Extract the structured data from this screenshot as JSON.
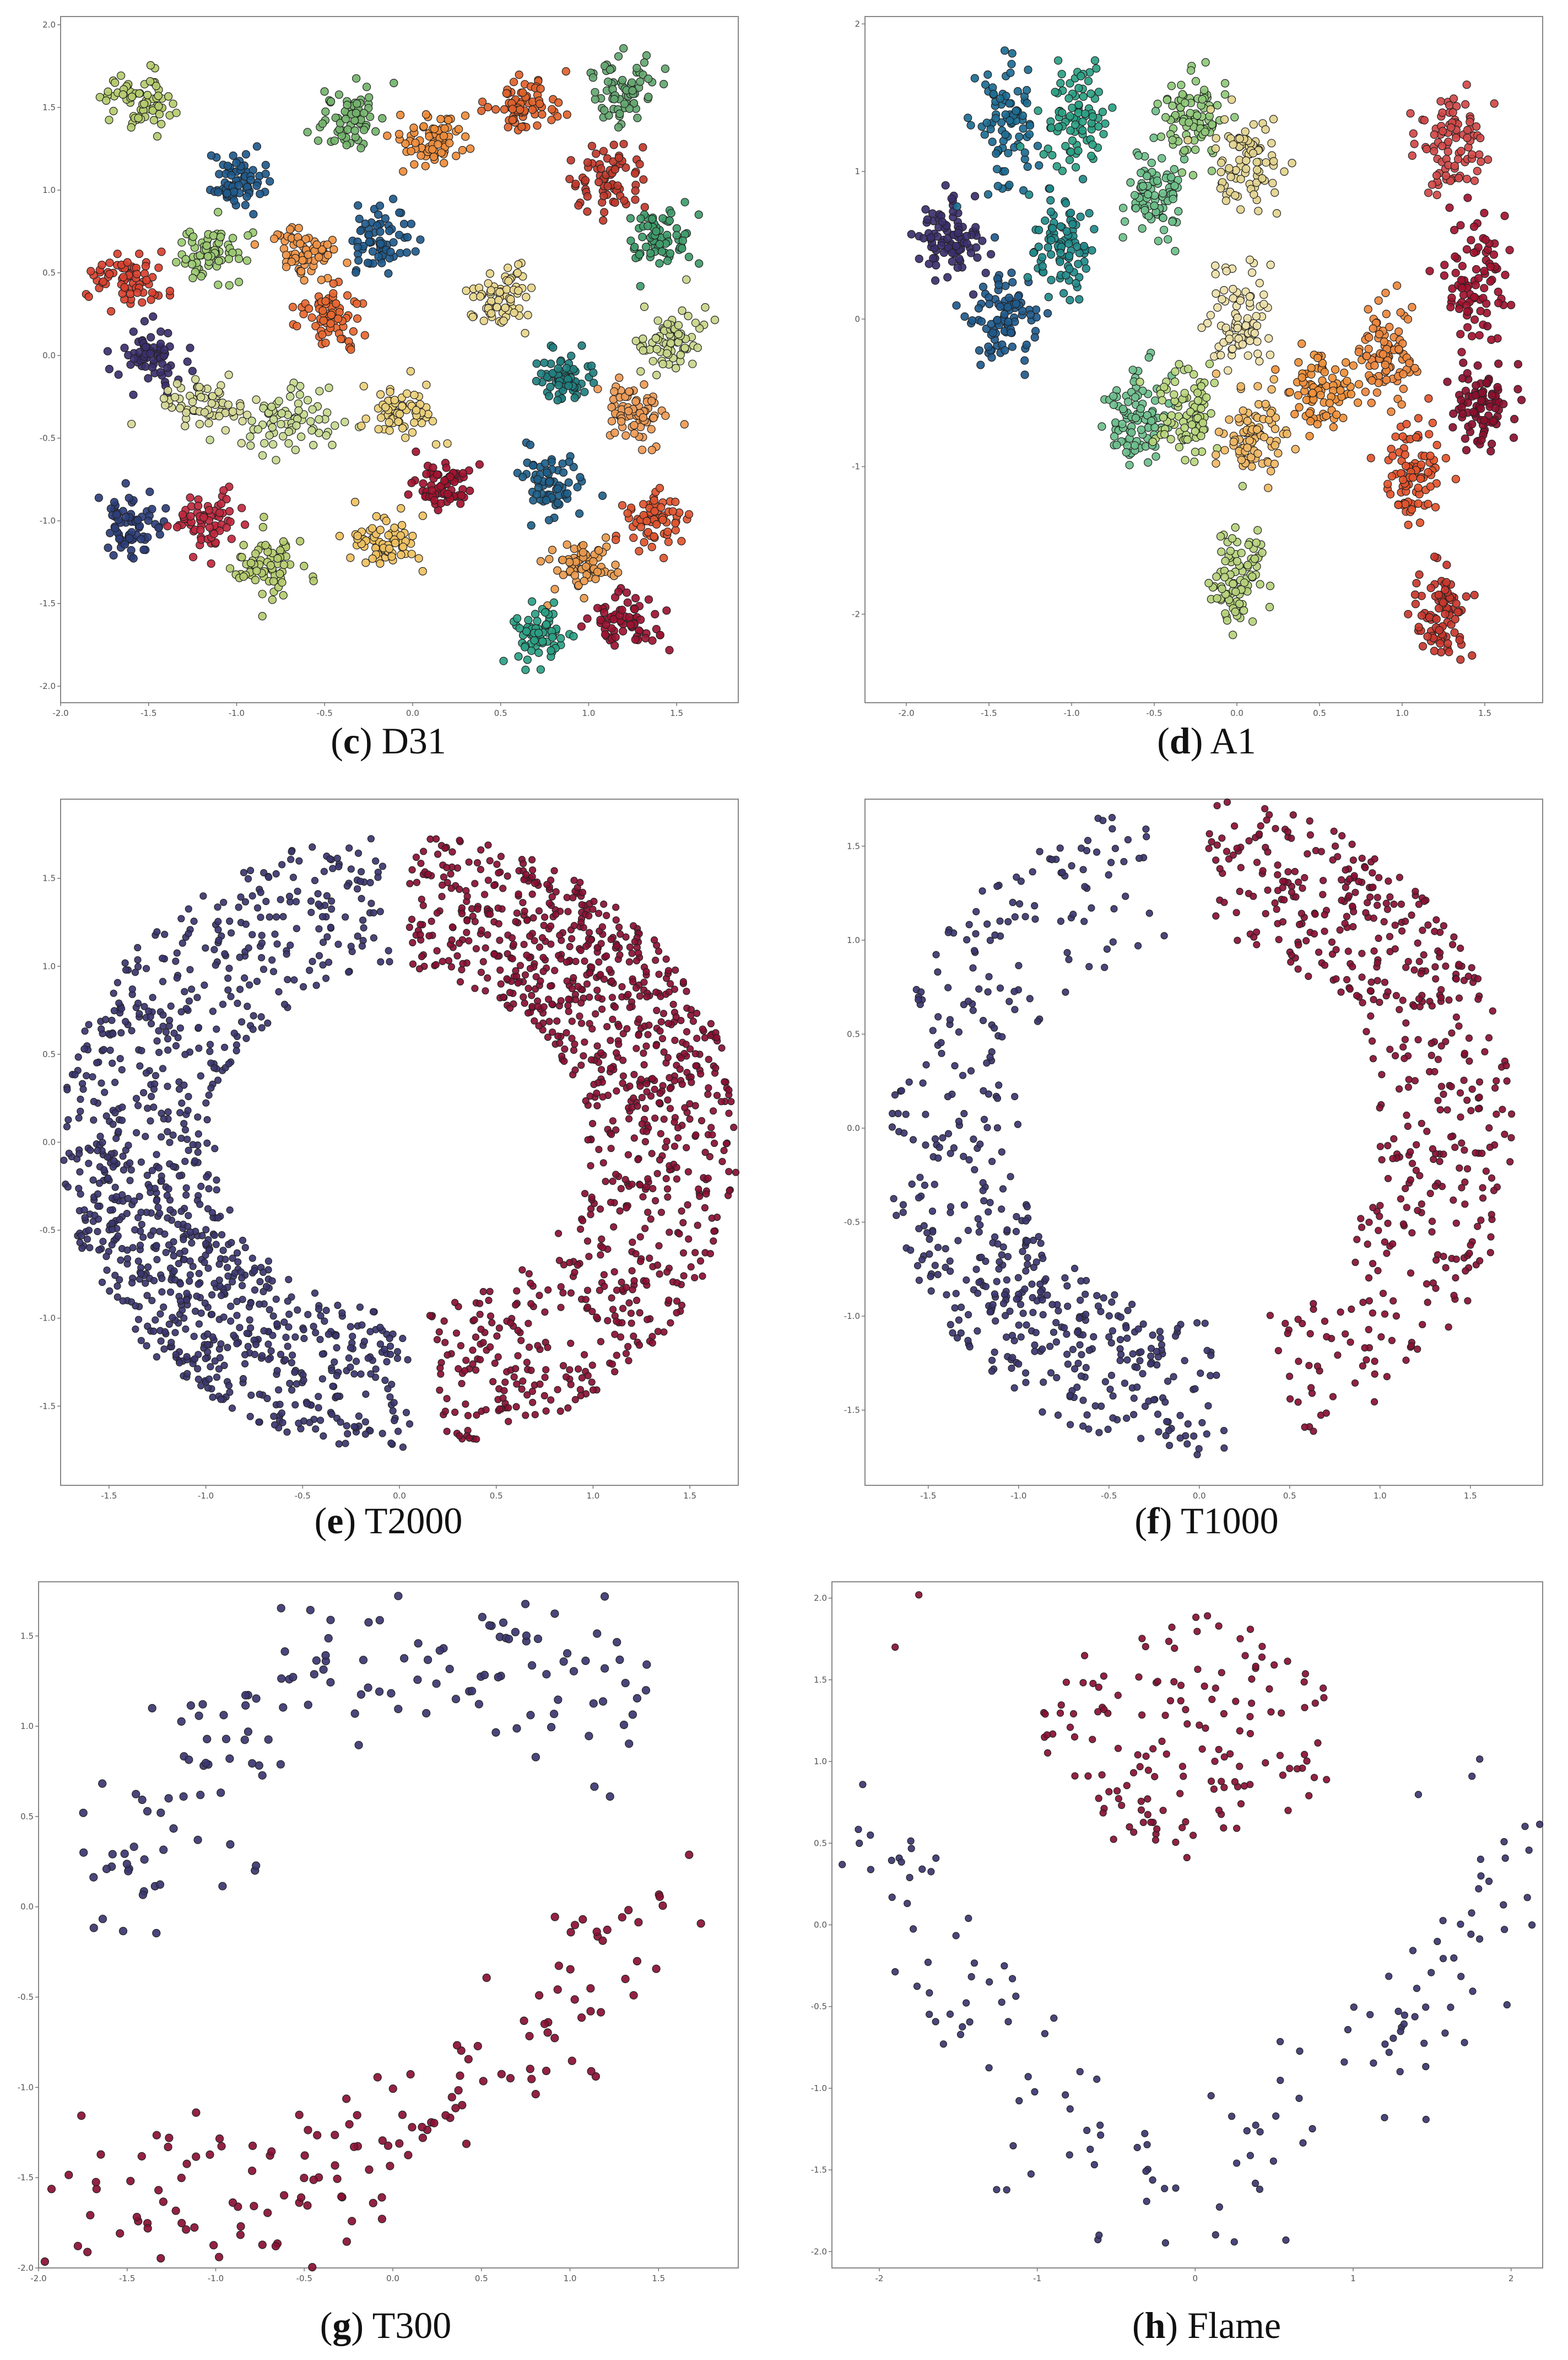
{
  "chart_data": [
    {
      "type": "scatter",
      "id": "c",
      "title": "D31",
      "caption_letter": "c",
      "xlim": [
        -2.0,
        1.85
      ],
      "ylim": [
        -2.1,
        2.05
      ],
      "xticks": [
        "-2.0",
        "-1.5",
        "-1.0",
        "-0.5",
        "0.0",
        "0.5",
        "1.0",
        "1.5"
      ],
      "yticks": [
        "2.0",
        "1.5",
        "1.0",
        "0.5",
        "0.0",
        "-0.5",
        "-1.0",
        "-1.5",
        "-2.0"
      ],
      "xtick_values": [
        -2.0,
        -1.5,
        -1.0,
        -0.5,
        0.0,
        0.5,
        1.0,
        1.5
      ],
      "ytick_values": [
        2.0,
        1.5,
        1.0,
        0.5,
        0.0,
        -0.5,
        -1.0,
        -1.5,
        -2.0
      ],
      "marker_radius": 7,
      "clusters": [
        {
          "cx": -1.55,
          "cy": 1.55,
          "sx": 0.1,
          "sy": 0.09,
          "n": 70,
          "color": "#b5cc6e"
        },
        {
          "cx": -1.02,
          "cy": 1.05,
          "sx": 0.08,
          "sy": 0.08,
          "n": 70,
          "color": "#1f5a8c"
        },
        {
          "cx": -0.35,
          "cy": 1.43,
          "sx": 0.09,
          "sy": 0.09,
          "n": 70,
          "color": "#74b46d"
        },
        {
          "cx": 0.12,
          "cy": 1.3,
          "sx": 0.1,
          "sy": 0.08,
          "n": 70,
          "color": "#ef8c3a"
        },
        {
          "cx": 0.65,
          "cy": 1.53,
          "sx": 0.11,
          "sy": 0.08,
          "n": 70,
          "color": "#e0622b"
        },
        {
          "cx": 1.18,
          "cy": 1.6,
          "sx": 0.1,
          "sy": 0.1,
          "n": 70,
          "color": "#64a770"
        },
        {
          "cx": 1.1,
          "cy": 1.08,
          "sx": 0.1,
          "sy": 0.1,
          "n": 70,
          "color": "#c0392b"
        },
        {
          "cx": 1.4,
          "cy": 0.72,
          "sx": 0.09,
          "sy": 0.1,
          "n": 70,
          "color": "#3f9c6a"
        },
        {
          "cx": -1.15,
          "cy": 0.62,
          "sx": 0.1,
          "sy": 0.09,
          "n": 70,
          "color": "#9ccb72"
        },
        {
          "cx": -0.62,
          "cy": 0.62,
          "sx": 0.1,
          "sy": 0.07,
          "n": 70,
          "color": "#f09447"
        },
        {
          "cx": -0.2,
          "cy": 0.7,
          "sx": 0.09,
          "sy": 0.1,
          "n": 70,
          "color": "#1f5a8c"
        },
        {
          "cx": -1.62,
          "cy": 0.45,
          "sx": 0.1,
          "sy": 0.09,
          "n": 70,
          "color": "#d9412f"
        },
        {
          "cx": -0.45,
          "cy": 0.22,
          "sx": 0.1,
          "sy": 0.09,
          "n": 70,
          "color": "#e8672f"
        },
        {
          "cx": 0.5,
          "cy": 0.35,
          "sx": 0.09,
          "sy": 0.09,
          "n": 70,
          "color": "#e8d68a"
        },
        {
          "cx": -1.5,
          "cy": 0.0,
          "sx": 0.09,
          "sy": 0.1,
          "n": 70,
          "color": "#3c2f6e"
        },
        {
          "cx": 1.45,
          "cy": 0.08,
          "sx": 0.11,
          "sy": 0.11,
          "n": 70,
          "color": "#c8d68a"
        },
        {
          "cx": -1.13,
          "cy": -0.3,
          "sx": 0.14,
          "sy": 0.07,
          "n": 70,
          "color": "#d6d996"
        },
        {
          "cx": -0.7,
          "cy": -0.4,
          "sx": 0.12,
          "sy": 0.09,
          "n": 70,
          "color": "#c5d98f"
        },
        {
          "cx": -0.05,
          "cy": -0.35,
          "sx": 0.09,
          "sy": 0.09,
          "n": 70,
          "color": "#ebd07a"
        },
        {
          "cx": 0.85,
          "cy": -0.15,
          "sx": 0.08,
          "sy": 0.08,
          "n": 70,
          "color": "#1f7f7f"
        },
        {
          "cx": 1.25,
          "cy": -0.35,
          "sx": 0.1,
          "sy": 0.1,
          "n": 70,
          "color": "#ee9a55"
        },
        {
          "cx": -1.6,
          "cy": -1.02,
          "sx": 0.09,
          "sy": 0.09,
          "n": 70,
          "color": "#2c3e7a"
        },
        {
          "cx": -1.17,
          "cy": -1.0,
          "sx": 0.09,
          "sy": 0.09,
          "n": 70,
          "color": "#c0283e"
        },
        {
          "cx": 0.15,
          "cy": -0.8,
          "sx": 0.09,
          "sy": 0.08,
          "n": 70,
          "color": "#a3122f"
        },
        {
          "cx": 0.8,
          "cy": -0.8,
          "sx": 0.08,
          "sy": 0.09,
          "n": 70,
          "color": "#1e5f8a"
        },
        {
          "cx": 1.38,
          "cy": -1.0,
          "sx": 0.09,
          "sy": 0.1,
          "n": 70,
          "color": "#e0552f"
        },
        {
          "cx": -0.82,
          "cy": -1.28,
          "sx": 0.1,
          "sy": 0.09,
          "n": 70,
          "color": "#b5cc6e"
        },
        {
          "cx": -0.18,
          "cy": -1.15,
          "sx": 0.1,
          "sy": 0.08,
          "n": 70,
          "color": "#f0c160"
        },
        {
          "cx": 0.95,
          "cy": -1.28,
          "sx": 0.1,
          "sy": 0.08,
          "n": 70,
          "color": "#ea9a4c"
        },
        {
          "cx": 0.72,
          "cy": -1.68,
          "sx": 0.09,
          "sy": 0.09,
          "n": 70,
          "color": "#2aa184"
        },
        {
          "cx": 1.22,
          "cy": -1.62,
          "sx": 0.1,
          "sy": 0.08,
          "n": 70,
          "color": "#9d1432"
        }
      ]
    },
    {
      "type": "scatter",
      "id": "d",
      "title": "A1",
      "caption_letter": "d",
      "xlim": [
        -2.25,
        1.85
      ],
      "ylim": [
        -2.6,
        2.05
      ],
      "xticks": [
        "-2.0",
        "-1.5",
        "-1.0",
        "-0.5",
        "0.0",
        "0.5",
        "1.0",
        "1.5"
      ],
      "yticks": [
        "2",
        "1",
        "0",
        "-1",
        "-2"
      ],
      "xtick_values": [
        -2.0,
        -1.5,
        -1.0,
        -0.5,
        0.0,
        0.5,
        1.0,
        1.5
      ],
      "ytick_values": [
        2,
        1,
        0,
        -1,
        -2
      ],
      "marker_radius": 7,
      "clusters": [
        {
          "cx": -1.75,
          "cy": 0.52,
          "sx": 0.1,
          "sy": 0.13,
          "n": 90,
          "color": "#3c2f6e"
        },
        {
          "cx": -1.4,
          "cy": 1.3,
          "sx": 0.09,
          "sy": 0.2,
          "n": 90,
          "color": "#1d6c92"
        },
        {
          "cx": -1.42,
          "cy": 0.0,
          "sx": 0.1,
          "sy": 0.15,
          "n": 90,
          "color": "#1f5a8c"
        },
        {
          "cx": -0.98,
          "cy": 1.38,
          "sx": 0.1,
          "sy": 0.17,
          "n": 90,
          "color": "#2aa184"
        },
        {
          "cx": -1.05,
          "cy": 0.5,
          "sx": 0.1,
          "sy": 0.17,
          "n": 90,
          "color": "#1f8a8a"
        },
        {
          "cx": -0.5,
          "cy": 0.85,
          "sx": 0.09,
          "sy": 0.16,
          "n": 90,
          "color": "#6cc08a"
        },
        {
          "cx": -0.28,
          "cy": 1.35,
          "sx": 0.1,
          "sy": 0.16,
          "n": 90,
          "color": "#8fc97a"
        },
        {
          "cx": 0.05,
          "cy": 1.05,
          "sx": 0.1,
          "sy": 0.14,
          "n": 90,
          "color": "#e3d48e"
        },
        {
          "cx": -0.6,
          "cy": -0.68,
          "sx": 0.1,
          "sy": 0.17,
          "n": 90,
          "color": "#6cbf8c"
        },
        {
          "cx": -0.3,
          "cy": -0.65,
          "sx": 0.1,
          "sy": 0.16,
          "n": 90,
          "color": "#b9d77d"
        },
        {
          "cx": 0.02,
          "cy": 0.0,
          "sx": 0.1,
          "sy": 0.17,
          "n": 90,
          "color": "#ede0a8"
        },
        {
          "cx": 0.1,
          "cy": -0.78,
          "sx": 0.1,
          "sy": 0.16,
          "n": 90,
          "color": "#f2b864"
        },
        {
          "cx": 0.52,
          "cy": -0.5,
          "sx": 0.1,
          "sy": 0.12,
          "n": 90,
          "color": "#f0903a"
        },
        {
          "cx": 0.9,
          "cy": -0.2,
          "sx": 0.09,
          "sy": 0.17,
          "n": 90,
          "color": "#ee873d"
        },
        {
          "cx": 0.0,
          "cy": -1.75,
          "sx": 0.09,
          "sy": 0.18,
          "n": 90,
          "color": "#b6d37c"
        },
        {
          "cx": 1.05,
          "cy": -1.05,
          "sx": 0.09,
          "sy": 0.16,
          "n": 90,
          "color": "#e4542b"
        },
        {
          "cx": 1.25,
          "cy": -2.0,
          "sx": 0.09,
          "sy": 0.17,
          "n": 90,
          "color": "#c8372c"
        },
        {
          "cx": 1.3,
          "cy": 1.2,
          "sx": 0.09,
          "sy": 0.18,
          "n": 90,
          "color": "#d14848"
        },
        {
          "cx": 1.45,
          "cy": 0.25,
          "sx": 0.1,
          "sy": 0.2,
          "n": 90,
          "color": "#a3122f"
        },
        {
          "cx": 1.48,
          "cy": -0.55,
          "sx": 0.1,
          "sy": 0.15,
          "n": 90,
          "color": "#8c0f2e"
        }
      ]
    },
    {
      "type": "scatter",
      "id": "e",
      "title": "T2000",
      "caption_letter": "e",
      "xlim": [
        -1.75,
        1.75
      ],
      "ylim": [
        -1.95,
        1.95
      ],
      "xticks": [
        "-1.5",
        "-1.0",
        "-0.5",
        "0.0",
        "0.5",
        "1.0",
        "1.5"
      ],
      "yticks": [
        "1.5",
        "1.0",
        "0.5",
        "0.0",
        "-0.5",
        "-1.0",
        "-1.5"
      ],
      "xtick_values": [
        -1.5,
        -1.0,
        -0.5,
        0.0,
        0.5,
        1.0,
        1.5
      ],
      "ytick_values": [
        1.5,
        1.0,
        0.5,
        0.0,
        -0.5,
        -1.0,
        -1.5
      ],
      "marker_radius": 6,
      "arcs": [
        {
          "r_in": 0.95,
          "r_out": 1.75,
          "a0": 92,
          "a1": 272,
          "n": 1000,
          "color": "#3b3670",
          "bias": 215
        },
        {
          "r_in": 0.95,
          "r_out": 1.75,
          "a0": -82,
          "a1": 88,
          "n": 1000,
          "color": "#8a0f33",
          "bias": 45
        }
      ]
    },
    {
      "type": "scatter",
      "id": "f",
      "title": "T1000",
      "caption_letter": "f",
      "xlim": [
        -1.85,
        1.9
      ],
      "ylim": [
        -1.9,
        1.75
      ],
      "xticks": [
        "-1.5",
        "-1.0",
        "-0.5",
        "0.0",
        "0.5",
        "1.0",
        "1.5"
      ],
      "yticks": [
        "1.5",
        "1.0",
        "0.5",
        "0.0",
        "-0.5",
        "-1.0",
        "-1.5"
      ],
      "xtick_values": [
        -1.5,
        -1.0,
        -0.5,
        0.0,
        0.5,
        1.0,
        1.5
      ],
      "ytick_values": [
        1.5,
        1.0,
        0.5,
        0.0,
        -0.5,
        -1.0,
        -1.5
      ],
      "marker_radius": 6,
      "arcs": [
        {
          "r_in": 1.0,
          "r_out": 1.75,
          "a0": 100,
          "a1": 275,
          "n": 500,
          "color": "#3b3670",
          "bias": 230
        },
        {
          "r_in": 1.0,
          "r_out": 1.75,
          "a0": -72,
          "a1": 88,
          "n": 500,
          "color": "#8a0f33",
          "bias": 50
        }
      ]
    },
    {
      "type": "scatter",
      "id": "g",
      "title": "T300",
      "caption_letter": "g",
      "xlim": [
        -2.0,
        1.95
      ],
      "ylim": [
        -2.0,
        1.8
      ],
      "xticks": [
        "-2.0",
        "-1.5",
        "-1.0",
        "-0.5",
        "0.0",
        "0.5",
        "1.0",
        "1.5"
      ],
      "yticks": [
        "1.5",
        "1.0",
        "0.5",
        "0.0",
        "-0.5",
        "-1.0",
        "-1.5",
        "-2.0"
      ],
      "xtick_values": [
        -2.0,
        -1.5,
        -1.0,
        -0.5,
        0.0,
        0.5,
        1.0,
        1.5
      ],
      "ytick_values": [
        1.5,
        1.0,
        0.5,
        0.0,
        -0.5,
        -1.0,
        -1.5,
        -2.0
      ],
      "marker_radius": 7,
      "bands": [
        {
          "pts": [
            [
              -1.75,
              0.1
            ],
            [
              -1.45,
              0.35
            ],
            [
              -1.1,
              0.65
            ],
            [
              -0.7,
              0.95
            ],
            [
              -0.35,
              1.35
            ],
            [
              0.1,
              1.3
            ],
            [
              0.6,
              1.35
            ],
            [
              1.0,
              1.3
            ],
            [
              1.55,
              1.1
            ]
          ],
          "spread": 0.22,
          "n": 150,
          "color": "#3b3670"
        },
        {
          "pts": [
            [
              -1.85,
              -1.6
            ],
            [
              -1.4,
              -1.6
            ],
            [
              -1.0,
              -1.6
            ],
            [
              -0.5,
              -1.5
            ],
            [
              -0.1,
              -1.35
            ],
            [
              0.3,
              -1.1
            ],
            [
              0.7,
              -0.85
            ],
            [
              1.05,
              -0.5
            ],
            [
              1.35,
              -0.15
            ],
            [
              1.6,
              -0.2
            ]
          ],
          "spread": 0.22,
          "n": 150,
          "color": "#8a0f33"
        }
      ]
    },
    {
      "type": "scatter",
      "id": "h",
      "title": "Flame",
      "caption_letter": "h",
      "xlim": [
        -2.3,
        2.2
      ],
      "ylim": [
        -2.1,
        2.1
      ],
      "xticks": [
        "-2",
        "-1",
        "0",
        "1",
        "2"
      ],
      "yticks": [
        "2.0",
        "1.5",
        "1.0",
        "0.5",
        "0.0",
        "-0.5",
        "-1.0",
        "-1.5",
        "-2.0"
      ],
      "xtick_values": [
        -2,
        -1,
        0,
        1,
        2
      ],
      "ytick_values": [
        2.0,
        1.5,
        1.0,
        0.5,
        0.0,
        -0.5,
        -1.0,
        -1.5,
        -2.0
      ],
      "marker_radius": 6,
      "blob": {
        "cx": -0.05,
        "cy": 1.15,
        "rx": 0.95,
        "ry": 0.75,
        "n": 150,
        "color": "#8a0f33"
      },
      "extra": [
        [
          -1.75,
          2.02
        ],
        [
          -1.9,
          1.7
        ]
      ],
      "extra_color": "#8a0f33",
      "ushape": {
        "pts": [
          [
            -2.1,
            0.45
          ],
          [
            -1.8,
            0.0
          ],
          [
            -1.5,
            -0.45
          ],
          [
            -1.1,
            -0.9
          ],
          [
            -0.6,
            -1.35
          ],
          [
            0.0,
            -1.55
          ],
          [
            0.6,
            -1.3
          ],
          [
            1.1,
            -0.85
          ],
          [
            1.55,
            -0.35
          ],
          [
            1.85,
            0.15
          ],
          [
            2.1,
            0.7
          ]
        ],
        "spread": 0.28,
        "n": 150,
        "color": "#3b3670"
      }
    }
  ]
}
